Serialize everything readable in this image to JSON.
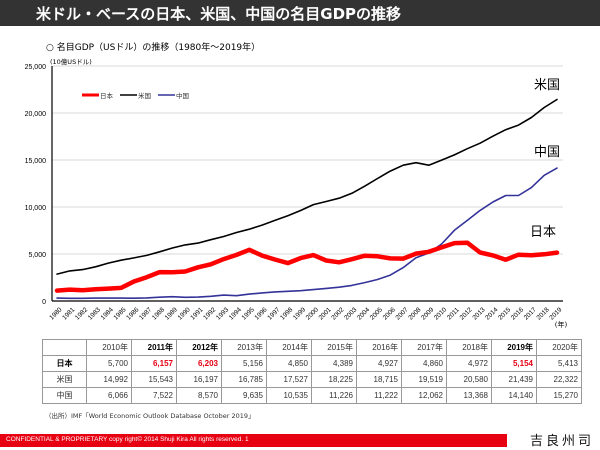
{
  "header": {
    "title": "米ドル・ベースの日本、米国、中国の名目GDPの推移"
  },
  "subtitle": "○ 名目GDP（USドル）の推移（1980年～2019年）",
  "unit_label": "(10億USドル)",
  "chart_data": {
    "type": "line",
    "title": "名目GDP（USドル）の推移（1980年～2019年）",
    "ylabel": "(10億USドル)",
    "xlabel": "(年)",
    "ylim": [
      0,
      25000
    ],
    "yticks": [
      0,
      5000,
      10000,
      15000,
      20000,
      25000
    ],
    "ytick_labels": [
      "0",
      "5,000",
      "10,000",
      "15,000",
      "20,000",
      "25,000"
    ],
    "grid": true,
    "legend_position": "top-left",
    "x": [
      "1980",
      "1981",
      "1982",
      "1983",
      "1984",
      "1985",
      "1986",
      "1987",
      "1988",
      "1989",
      "1990",
      "1991",
      "1992",
      "1993",
      "1994",
      "1995",
      "1996",
      "1997",
      "1998",
      "1999",
      "2000",
      "2001",
      "2002",
      "2003",
      "2004",
      "2005",
      "2006",
      "2007",
      "2008",
      "2009",
      "2010",
      "2011",
      "2012",
      "2013",
      "2014",
      "2015",
      "2016",
      "2017",
      "2018",
      "2019"
    ],
    "series": [
      {
        "name": "日本",
        "label": "日本",
        "color": "#ff0000",
        "values": [
          1105,
          1218,
          1134,
          1243,
          1318,
          1398,
          2078,
          2532,
          3072,
          3054,
          3133,
          3584,
          3909,
          4454,
          4907,
          5449,
          4833,
          4414,
          4032,
          4562,
          4888,
          4304,
          4115,
          4445,
          4815,
          4755,
          4530,
          4515,
          5038,
          5231,
          5700,
          6157,
          6203,
          5156,
          4850,
          4389,
          4927,
          4860,
          4972,
          5154
        ]
      },
      {
        "name": "米国",
        "label": "米国",
        "color": "#000000",
        "values": [
          2857,
          3207,
          3343,
          3634,
          4037,
          4339,
          4580,
          4855,
          5236,
          5642,
          5963,
          6158,
          6520,
          6859,
          7287,
          7640,
          8073,
          8578,
          9063,
          9631,
          10252,
          10582,
          10936,
          11458,
          12214,
          13037,
          13815,
          14452,
          14713,
          14449,
          14992,
          15543,
          16197,
          16785,
          17527,
          18225,
          18715,
          19519,
          20580,
          21439
        ]
      },
      {
        "name": "中国",
        "label": "中国",
        "color": "#333399",
        "values": [
          305,
          289,
          284,
          306,
          313,
          310,
          301,
          328,
          408,
          457,
          395,
          416,
          495,
          623,
          565,
          736,
          865,
          963,
          1029,
          1094,
          1211,
          1339,
          1471,
          1660,
          1955,
          2286,
          2752,
          3552,
          4598,
          5110,
          6066,
          7522,
          8570,
          9635,
          10535,
          11226,
          11222,
          12062,
          13368,
          14140
        ]
      }
    ],
    "end_labels": [
      "米国",
      "中国",
      "日本"
    ]
  },
  "table": {
    "headers": [
      "2010年",
      "2011年",
      "2012年",
      "2013年",
      "2014年",
      "2015年",
      "2016年",
      "2017年",
      "2018年",
      "2019年",
      "2020年"
    ],
    "bold_headers": [
      false,
      true,
      true,
      false,
      false,
      false,
      false,
      false,
      false,
      true,
      false
    ],
    "rows": [
      {
        "label": "日本",
        "values": [
          "5,700",
          "6,157",
          "6,203",
          "5,156",
          "4,850",
          "4,389",
          "4,927",
          "4,860",
          "4,972",
          "5,154",
          "5,413"
        ],
        "highlight": [
          false,
          true,
          true,
          false,
          false,
          false,
          false,
          false,
          false,
          true,
          false
        ]
      },
      {
        "label": "米国",
        "values": [
          "14,992",
          "15,543",
          "16,197",
          "16,785",
          "17,527",
          "18,225",
          "18,715",
          "19,519",
          "20,580",
          "21,439",
          "22,322"
        ]
      },
      {
        "label": "中国",
        "values": [
          "6,066",
          "7,522",
          "8,570",
          "9,635",
          "10,535",
          "11,226",
          "11,222",
          "12,062",
          "13,368",
          "14,140",
          "15,270"
        ]
      }
    ]
  },
  "source": "（出所）IMF「World Economic Outlook Database October 2019」",
  "footer": {
    "text": "CONFIDENTIAL & PROPRIETARY  copy right© 2014   Shuji Kira All rights reserved.   1",
    "signature": "吉良州司",
    "bar_color": "#e60012"
  }
}
